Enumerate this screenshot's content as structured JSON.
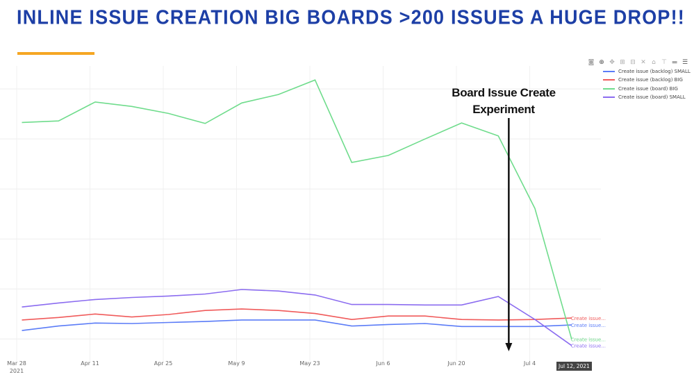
{
  "title": "INLINE ISSUE CREATION BIG BOARDS >200 ISSUES A HUGE DROP!!",
  "annotation": {
    "line1": "Board Issue Create",
    "line2": "Experiment"
  },
  "toolbar": [
    "camera-icon",
    "zoom-icon",
    "pan-icon",
    "zoom-in-icon",
    "zoom-out-icon",
    "autoscale-icon",
    "home-icon",
    "spike-lines-icon",
    "compare-hover-icon",
    "closest-hover-icon"
  ],
  "hover_label": "Jul 12, 2021",
  "chart_data": {
    "type": "line",
    "title": "",
    "xlabel": "",
    "ylabel": "",
    "y_ticks_shown": false,
    "grid": true,
    "legend_placement": "top-right",
    "x": [
      "2021-03-29",
      "2021-04-05",
      "2021-04-12",
      "2021-04-19",
      "2021-04-26",
      "2021-05-03",
      "2021-05-10",
      "2021-05-17",
      "2021-05-24",
      "2021-05-31",
      "2021-06-07",
      "2021-06-14",
      "2021-06-21",
      "2021-06-28",
      "2021-07-05",
      "2021-07-12"
    ],
    "x_tick_labels": [
      {
        "date": "2021-03-28",
        "label": "Mar 28",
        "sub": "2021"
      },
      {
        "date": "2021-04-11",
        "label": "Apr 11"
      },
      {
        "date": "2021-04-25",
        "label": "Apr 25"
      },
      {
        "date": "2021-05-09",
        "label": "May 9"
      },
      {
        "date": "2021-05-23",
        "label": "May 23"
      },
      {
        "date": "2021-06-06",
        "label": "Jun 6"
      },
      {
        "date": "2021-06-20",
        "label": "Jun 20"
      },
      {
        "date": "2021-07-04",
        "label": "Jul 4"
      }
    ],
    "ylim": [
      -0.44,
      5.46
    ],
    "y_gridlines": [
      0,
      1,
      2,
      3,
      4,
      5
    ],
    "series": [
      {
        "name": "Create issue (backlog) SMALL",
        "end_label": "Create issue...",
        "color": "#636efa",
        "values": [
          0.17,
          0.26,
          0.32,
          0.31,
          0.33,
          0.35,
          0.38,
          0.38,
          0.38,
          0.26,
          0.29,
          0.31,
          0.25,
          0.25,
          0.25,
          0.28
        ]
      },
      {
        "name": "Create issue (backlog) BIG",
        "end_label": "Create issue...",
        "color": "#ef553b",
        "values": [
          0.38,
          0.43,
          0.5,
          0.44,
          0.49,
          0.57,
          0.6,
          0.57,
          0.51,
          0.39,
          0.46,
          0.46,
          0.39,
          0.38,
          0.39,
          0.42
        ]
      },
      {
        "name": "Create issue (board) BIG",
        "end_label": "Create issue...",
        "color": "#00cc96",
        "values": [
          4.33,
          4.36,
          4.74,
          4.65,
          4.51,
          4.31,
          4.72,
          4.89,
          5.18,
          3.53,
          3.67,
          4.0,
          4.32,
          4.06,
          2.61,
          0.0
        ]
      },
      {
        "name": "Create issue (board) SMALL",
        "end_label": "Create issue...",
        "color": "#ab63fa",
        "values": [
          0.64,
          0.72,
          0.79,
          0.83,
          0.86,
          0.9,
          0.99,
          0.96,
          0.88,
          0.69,
          0.69,
          0.68,
          0.68,
          0.85,
          0.39,
          -0.13
        ]
      }
    ],
    "line_colors_rendered": [
      "#5b7cf7",
      "#f05a5a",
      "#6fdc8c",
      "#8b6cf0"
    ],
    "annotation_arrow_date": "2021-06-30"
  }
}
